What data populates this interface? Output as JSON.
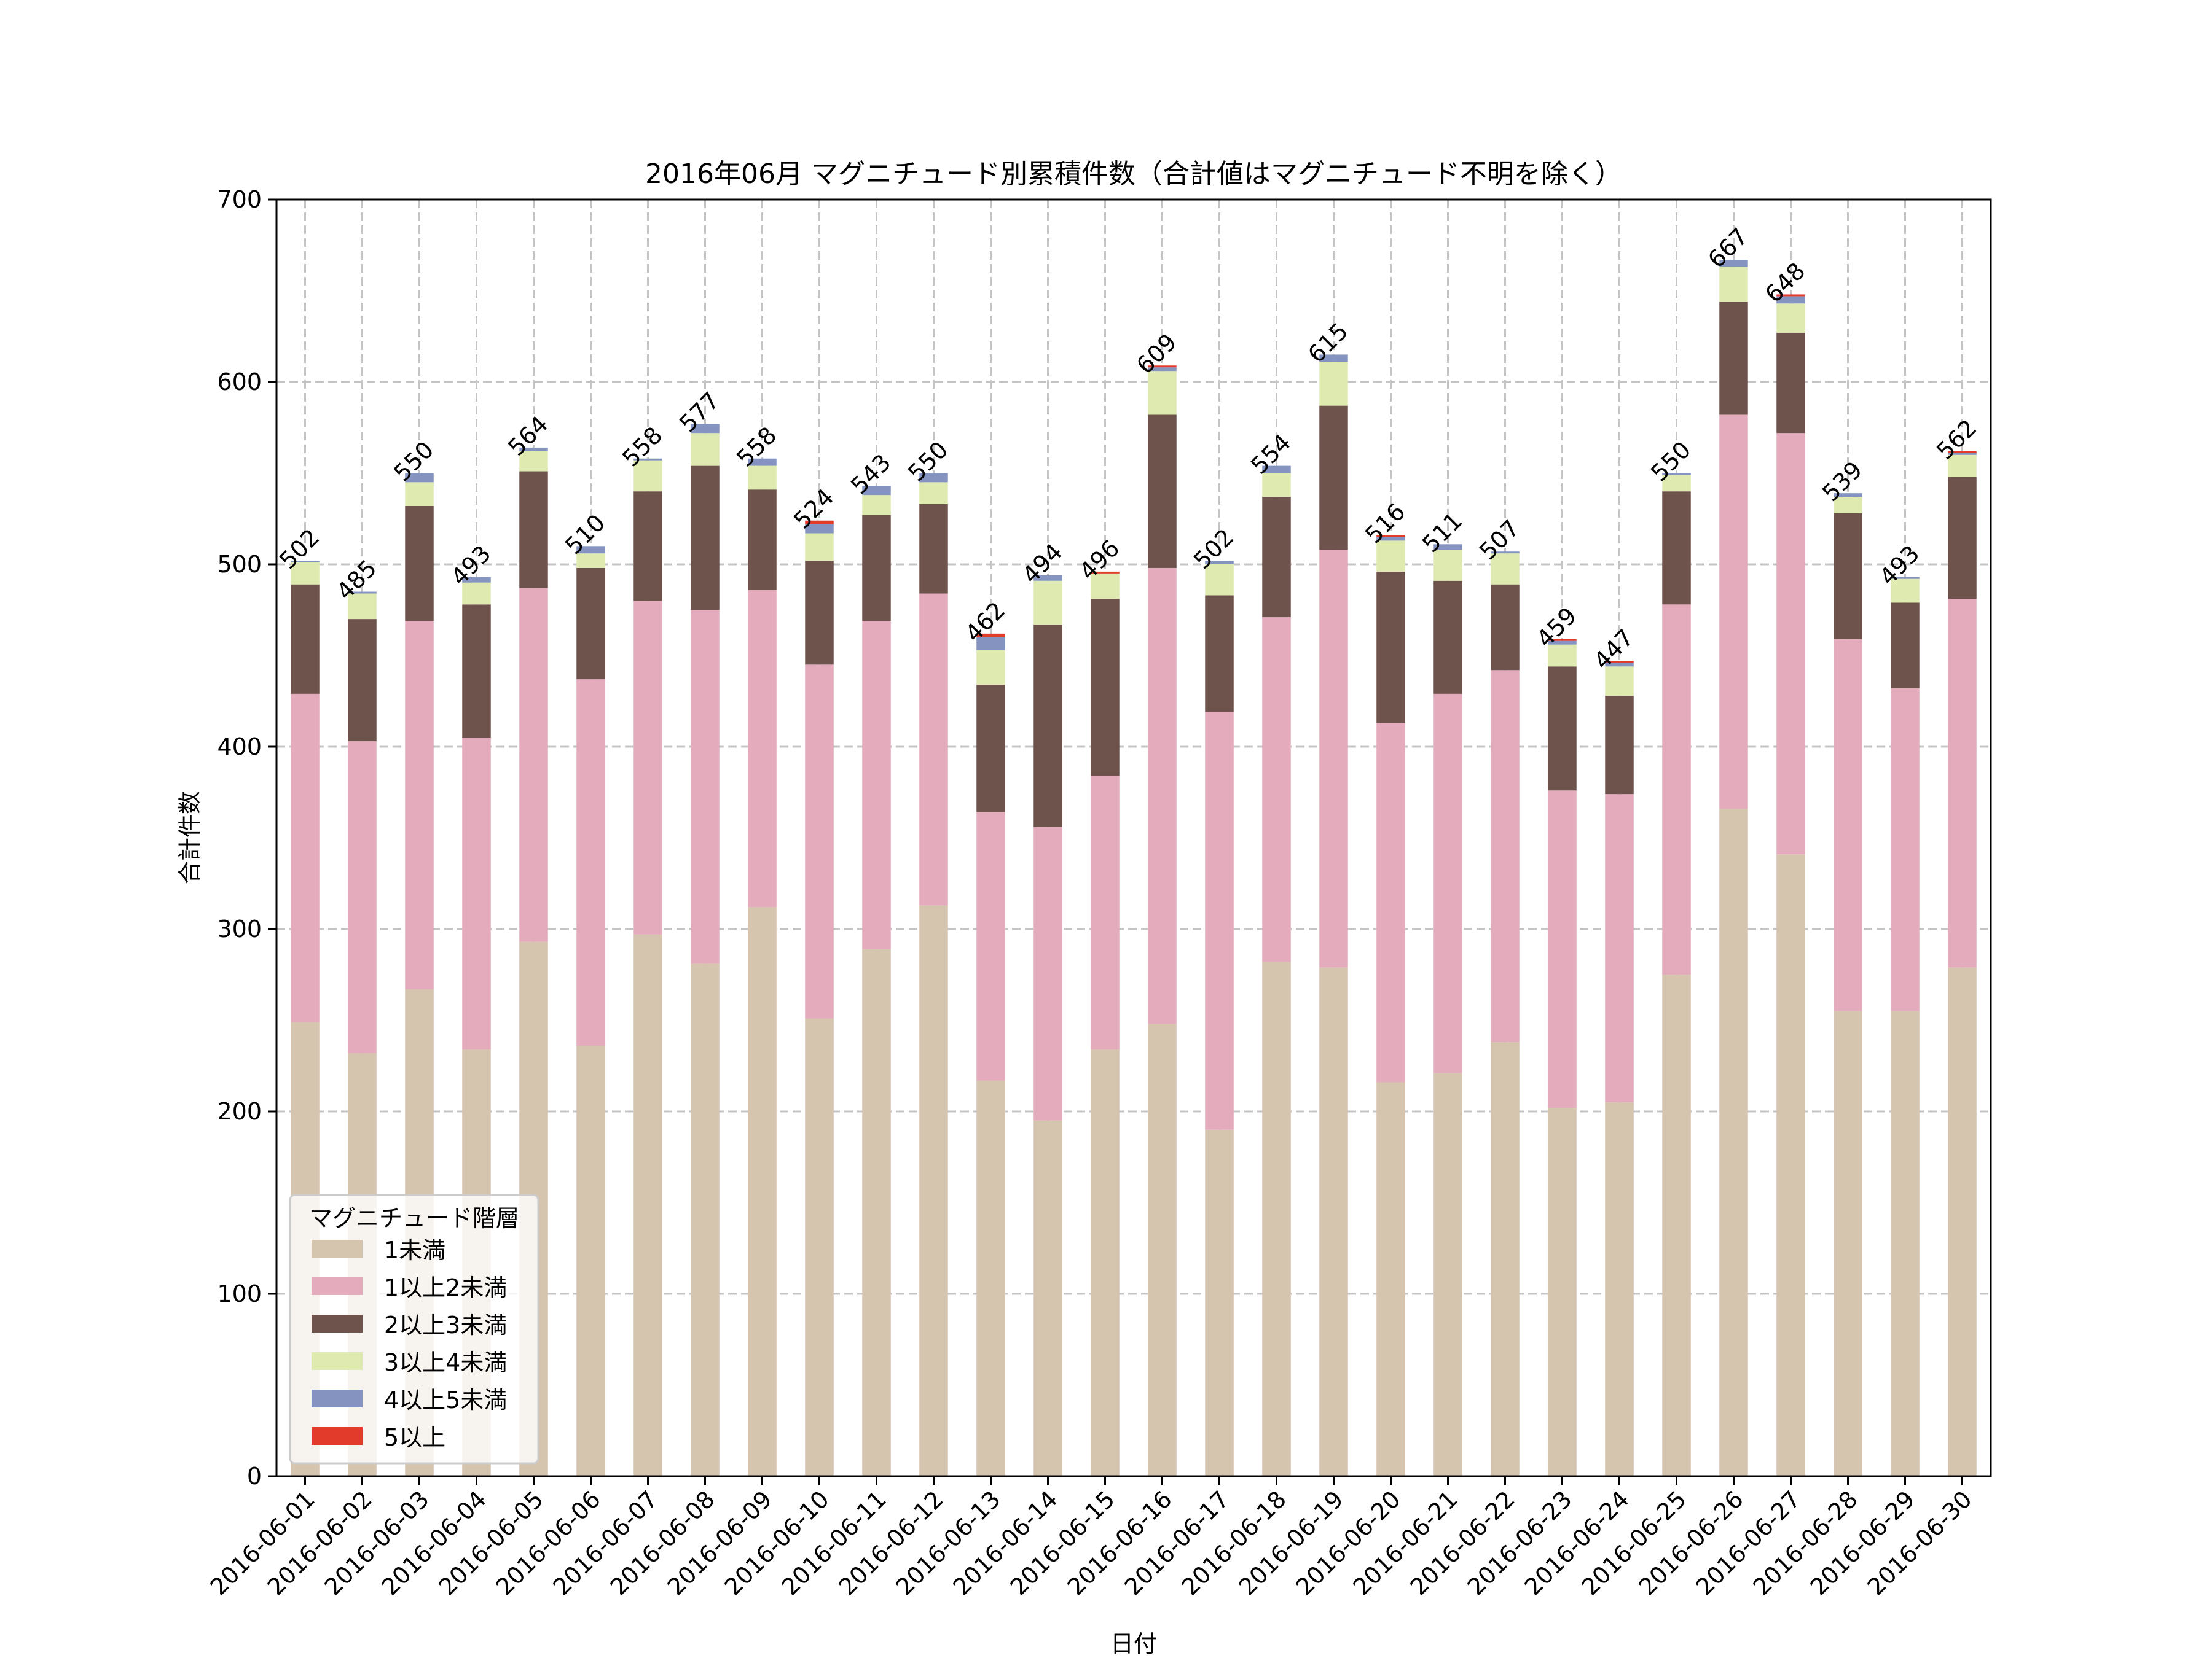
{
  "chart_data": {
    "type": "bar",
    "stacked": true,
    "title": "2016年06月 マグニチュード別累積件数（合計値はマグニチュード不明を除く）",
    "xlabel": "日付",
    "ylabel": "合計件数",
    "ylim": [
      0,
      700
    ],
    "yticks": [
      0,
      100,
      200,
      300,
      400,
      500,
      600,
      700
    ],
    "grid": true,
    "legend": {
      "title": "マグニチュード階層",
      "placement": "lower-left"
    },
    "categories": [
      "2016-06-01",
      "2016-06-02",
      "2016-06-03",
      "2016-06-04",
      "2016-06-05",
      "2016-06-06",
      "2016-06-07",
      "2016-06-08",
      "2016-06-09",
      "2016-06-10",
      "2016-06-11",
      "2016-06-12",
      "2016-06-13",
      "2016-06-14",
      "2016-06-15",
      "2016-06-16",
      "2016-06-17",
      "2016-06-18",
      "2016-06-19",
      "2016-06-20",
      "2016-06-21",
      "2016-06-22",
      "2016-06-23",
      "2016-06-24",
      "2016-06-25",
      "2016-06-26",
      "2016-06-27",
      "2016-06-28",
      "2016-06-29",
      "2016-06-30"
    ],
    "series": [
      {
        "name": "1未満",
        "color": "#d5c4ae",
        "values": [
          249,
          232,
          267,
          234,
          293,
          236,
          297,
          281,
          312,
          251,
          289,
          313,
          217,
          195,
          234,
          248,
          190,
          282,
          279,
          216,
          221,
          238,
          202,
          205,
          275,
          366,
          341,
          255,
          255,
          279
        ]
      },
      {
        "name": "1以上2未満",
        "color": "#e4abbc",
        "values": [
          180,
          171,
          202,
          171,
          194,
          201,
          183,
          194,
          174,
          194,
          180,
          171,
          147,
          161,
          150,
          250,
          229,
          189,
          229,
          197,
          208,
          204,
          174,
          169,
          203,
          216,
          231,
          204,
          177,
          202
        ]
      },
      {
        "name": "2以上3未満",
        "color": "#6e524c",
        "values": [
          60,
          67,
          63,
          73,
          64,
          61,
          60,
          79,
          55,
          57,
          58,
          49,
          70,
          111,
          97,
          84,
          64,
          66,
          79,
          83,
          62,
          47,
          68,
          54,
          62,
          62,
          55,
          69,
          47,
          67
        ]
      },
      {
        "name": "3以上4未満",
        "color": "#dfeab0",
        "values": [
          12,
          14,
          13,
          12,
          11,
          8,
          17,
          18,
          13,
          15,
          11,
          12,
          19,
          24,
          14,
          24,
          17,
          13,
          24,
          17,
          17,
          17,
          12,
          16,
          9,
          19,
          16,
          9,
          13,
          12
        ]
      },
      {
        "name": "4以上5未満",
        "color": "#8593c1",
        "values": [
          1,
          1,
          5,
          3,
          2,
          4,
          1,
          5,
          4,
          5,
          5,
          5,
          7,
          3,
          0,
          2,
          2,
          4,
          4,
          2,
          3,
          1,
          2,
          2,
          1,
          4,
          4,
          2,
          1,
          1
        ]
      },
      {
        "name": "5以上",
        "color": "#e33b2b",
        "values": [
          0,
          0,
          0,
          0,
          0,
          0,
          0,
          0,
          0,
          2,
          0,
          0,
          2,
          0,
          1,
          1,
          0,
          0,
          0,
          1,
          0,
          0,
          1,
          1,
          0,
          0,
          1,
          0,
          0,
          1
        ]
      }
    ],
    "totals": [
      502,
      485,
      550,
      493,
      564,
      510,
      558,
      577,
      558,
      524,
      543,
      550,
      462,
      494,
      496,
      609,
      502,
      554,
      615,
      516,
      511,
      507,
      459,
      447,
      550,
      667,
      648,
      539,
      493,
      562
    ]
  }
}
